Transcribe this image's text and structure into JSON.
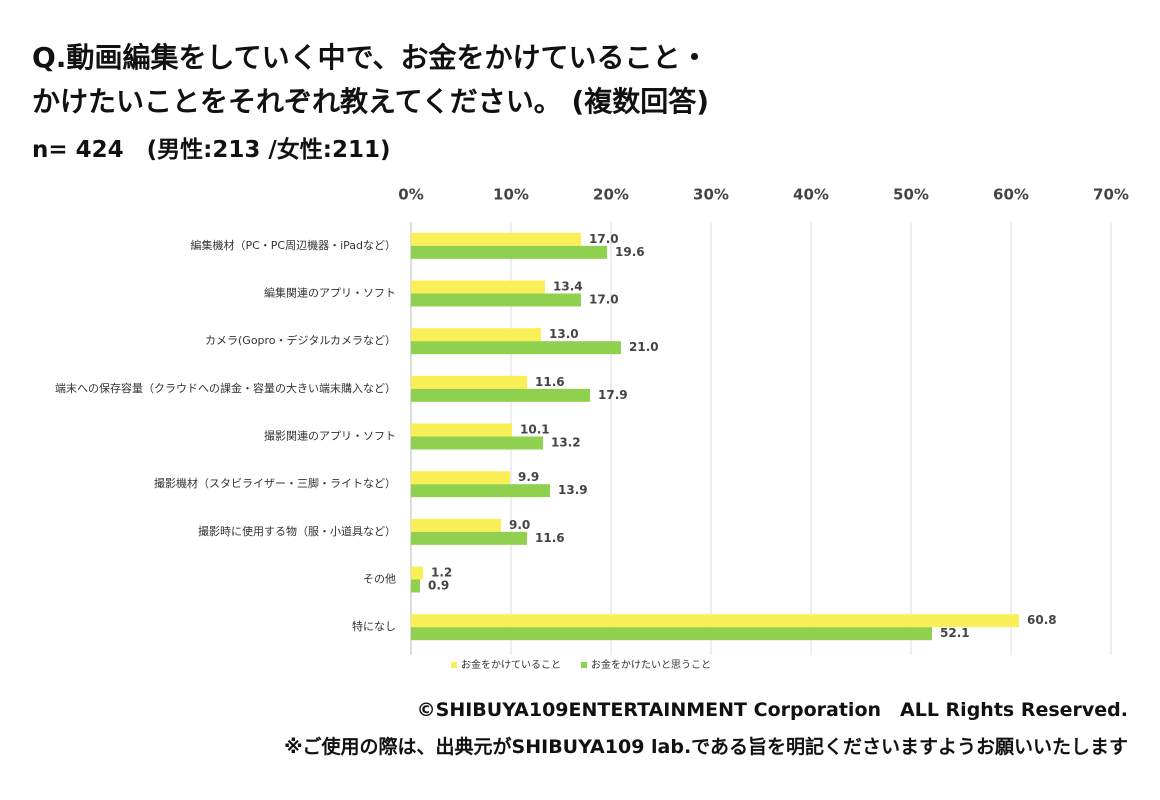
{
  "title_lines": [
    "Q.動画編集をしていく中で、お金をかけていること・",
    "かけたいことをそれぞれ教えてください。 (複数回答)"
  ],
  "subtitle": "n= 424　(男性:213 /女性:211)",
  "chart_data": {
    "type": "barh",
    "categories": [
      "編集機材（PC・PC周辺機器・iPadなど）",
      "編集関連のアプリ・ソフト",
      "カメラ(Gopro・デジタルカメラなど）",
      "端末への保存容量（クラウドへの課金・容量の大きい端末購入など）",
      "撮影関連のアプリ・ソフト",
      "撮影機材（スタビライザー・三脚・ライトなど）",
      "撮影時に使用する物（服・小道具など）",
      "その他",
      "特になし"
    ],
    "series": [
      {
        "name": "お金をかけていること",
        "color": "#fbef58",
        "values": [
          17.0,
          13.4,
          13.0,
          11.6,
          10.1,
          9.9,
          9.0,
          1.2,
          60.8
        ],
        "value_labels": [
          "17.0",
          "13.4",
          "13.0",
          "11.6",
          "10.1",
          "9.9",
          "9.0",
          "1.2",
          "60.8"
        ]
      },
      {
        "name": "お金をかけたいと思うこと",
        "color": "#8fd14f",
        "values": [
          19.6,
          17.0,
          21.0,
          17.9,
          13.2,
          13.9,
          11.6,
          0.9,
          52.1
        ],
        "value_labels": [
          "19.6",
          "17.0",
          "21.0",
          "17.9",
          "13.2",
          "13.9",
          "11.6",
          "0.9",
          "52.1"
        ]
      }
    ],
    "xlim": [
      0,
      70
    ],
    "xticks": [
      {
        "value": 0,
        "label": "0%"
      },
      {
        "value": 10,
        "label": "10%"
      },
      {
        "value": 20,
        "label": "20%"
      },
      {
        "value": 30,
        "label": "30%"
      },
      {
        "value": 40,
        "label": "40%"
      },
      {
        "value": 50,
        "label": "50%"
      },
      {
        "value": 60,
        "label": "60%"
      },
      {
        "value": 70,
        "label": "70%"
      }
    ],
    "grid": true,
    "legend": "bottom"
  },
  "footer": [
    "©SHIBUYA109ENTERTAINMENT Corporation　ALL Rights Reserved.",
    "※ご使用の際は、出典元がSHIBUYA109 lab.である旨を明記くださいますようお願いいたします"
  ]
}
